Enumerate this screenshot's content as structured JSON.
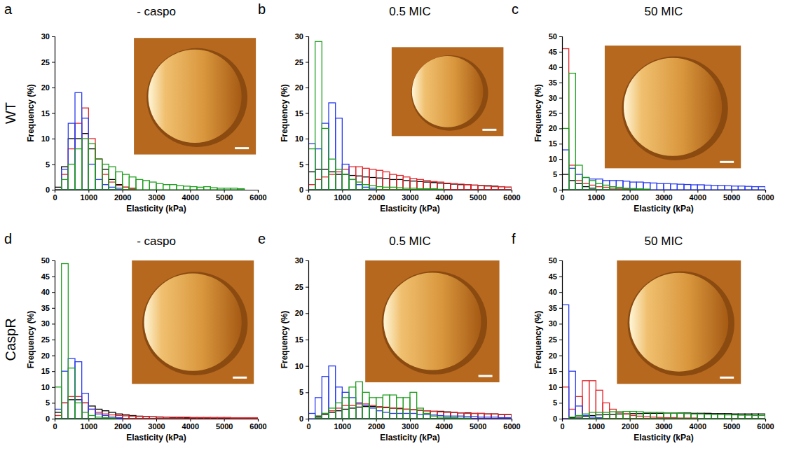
{
  "chart_data": [
    {
      "type": "histogram",
      "letter": "a",
      "title": "- caspo",
      "row_label": "WT",
      "x_label": "Elasticity (kPa)",
      "y_label": "Frequency (%)",
      "bins": [
        0,
        200,
        400,
        600,
        800,
        1000,
        1200,
        1400,
        1600,
        1800,
        2000,
        2200,
        2400,
        2600,
        2800,
        3000,
        3200,
        3400,
        3600,
        3800,
        4000,
        4200,
        4400,
        4600,
        4800,
        5000,
        5200,
        5400,
        5600,
        5800,
        6000
      ],
      "xlim": [
        0,
        6000
      ],
      "ylim": [
        0,
        30
      ],
      "xticks": [
        0,
        1000,
        2000,
        3000,
        4000,
        5000,
        6000
      ],
      "yticks": [
        0,
        5,
        10,
        15,
        20,
        25,
        30
      ],
      "series": [
        {
          "color": "#000000",
          "values": [
            0.5,
            4.5,
            10,
            10,
            11,
            8,
            6,
            4,
            2,
            1,
            0.5,
            0.3,
            0,
            0,
            0,
            0,
            0,
            0,
            0,
            0,
            0,
            0,
            0,
            0,
            0,
            0,
            0,
            0,
            0,
            0
          ]
        },
        {
          "color": "#e3262b",
          "values": [
            0,
            3,
            8,
            13,
            16,
            10,
            6,
            3,
            1.5,
            0.8,
            0.5,
            0.3,
            0,
            0,
            0,
            0,
            0,
            0,
            0,
            0,
            0,
            0,
            0,
            0,
            0,
            0,
            0,
            0,
            0,
            0
          ]
        },
        {
          "color": "#2a3cf0",
          "values": [
            0,
            4,
            13,
            19,
            14,
            5,
            2,
            1,
            0.5,
            0.3,
            0,
            0,
            0,
            0,
            0,
            0,
            0,
            0,
            0,
            0,
            0,
            0,
            0,
            0,
            0,
            0,
            0,
            0,
            0,
            0
          ]
        },
        {
          "color": "#1f9e1f",
          "values": [
            0,
            2,
            5,
            8,
            10,
            9,
            6,
            5,
            4.5,
            3.5,
            3,
            2.5,
            2,
            1.8,
            1.5,
            1.2,
            1,
            1,
            0.8,
            0.7,
            0.6,
            0.5,
            0.6,
            0.4,
            0.3,
            0.3,
            0.3,
            0.2,
            0,
            0
          ]
        }
      ]
    },
    {
      "type": "histogram",
      "letter": "b",
      "title": "0.5 MIC",
      "x_label": "Elasticity (kPa)",
      "y_label": "Frequency (%)",
      "bins": [
        0,
        200,
        400,
        600,
        800,
        1000,
        1200,
        1400,
        1600,
        1800,
        2000,
        2200,
        2400,
        2600,
        2800,
        3000,
        3200,
        3400,
        3600,
        3800,
        4000,
        4200,
        4400,
        4600,
        4800,
        5000,
        5200,
        5400,
        5600,
        5800,
        6000
      ],
      "xlim": [
        0,
        6000
      ],
      "ylim": [
        0,
        30
      ],
      "xticks": [
        0,
        1000,
        2000,
        3000,
        4000,
        5000,
        6000
      ],
      "yticks": [
        0,
        5,
        10,
        15,
        20,
        25,
        30
      ],
      "series": [
        {
          "color": "#000000",
          "values": [
            3.5,
            4,
            4,
            3.5,
            3,
            3,
            2.8,
            2.7,
            2.5,
            2.4,
            2.3,
            2.2,
            2,
            2,
            1.8,
            1.7,
            1.6,
            1.5,
            1.4,
            1.3,
            1.2,
            1.1,
            1,
            1,
            0.9,
            0.8,
            0.8,
            0.7,
            0.6,
            0.5
          ]
        },
        {
          "color": "#e3262b",
          "values": [
            1,
            2,
            2.5,
            3,
            3.5,
            4,
            4.5,
            4.5,
            4.2,
            4,
            3.8,
            3.5,
            3,
            2.8,
            2.5,
            2.2,
            2,
            1.8,
            1.6,
            1.5,
            1.3,
            1.2,
            1.1,
            1,
            0.9,
            0.8,
            0.7,
            0.6,
            0.6,
            0.5
          ]
        },
        {
          "color": "#2a3cf0",
          "values": [
            9,
            8,
            13,
            17,
            14,
            5,
            2,
            1,
            0.5,
            0.3,
            0,
            0,
            0,
            0,
            0,
            0,
            0,
            0,
            0,
            0,
            0,
            0,
            0,
            0,
            0,
            0,
            0,
            0,
            0,
            0
          ]
        },
        {
          "color": "#1f9e1f",
          "values": [
            8,
            29,
            12,
            6,
            4,
            3,
            2,
            1.5,
            1,
            0.8,
            0.6,
            0.5,
            0.5,
            0.4,
            0.3,
            0.3,
            0.2,
            0.2,
            0.2,
            0.1,
            0,
            0,
            0,
            0,
            0,
            0,
            0,
            0,
            0,
            0
          ]
        }
      ]
    },
    {
      "type": "histogram",
      "letter": "c",
      "title": "50 MIC",
      "x_label": "Elasticity (kPa)",
      "y_label": "Frequency (%)",
      "bins": [
        0,
        200,
        400,
        600,
        800,
        1000,
        1200,
        1400,
        1600,
        1800,
        2000,
        2200,
        2400,
        2600,
        2800,
        3000,
        3200,
        3400,
        3600,
        3800,
        4000,
        4200,
        4400,
        4600,
        4800,
        5000,
        5200,
        5400,
        5600,
        5800,
        6000
      ],
      "xlim": [
        0,
        6000
      ],
      "ylim": [
        0,
        50
      ],
      "xticks": [
        0,
        1000,
        2000,
        3000,
        4000,
        5000,
        6000
      ],
      "yticks": [
        0,
        5,
        10,
        15,
        20,
        25,
        30,
        35,
        40,
        45,
        50
      ],
      "series": [
        {
          "color": "#000000",
          "values": [
            5,
            3,
            2,
            1,
            0.5,
            0,
            0,
            0,
            0,
            0,
            0,
            0,
            0,
            0,
            0,
            0,
            0,
            0,
            0,
            0,
            0,
            0,
            0,
            0,
            0,
            0,
            0,
            0,
            0,
            0
          ]
        },
        {
          "color": "#e3262b",
          "values": [
            46,
            8,
            3,
            2,
            1.5,
            1,
            0.8,
            0.5,
            0.4,
            0.3,
            0.2,
            0,
            0,
            0,
            0,
            0,
            0,
            0,
            0,
            0,
            0,
            0,
            0,
            0,
            0,
            0,
            0,
            0,
            0,
            0
          ]
        },
        {
          "color": "#2a3cf0",
          "values": [
            13,
            7,
            5,
            4,
            3.5,
            3.5,
            3,
            3,
            3,
            2.8,
            2.5,
            2.5,
            2.3,
            2.2,
            2,
            2,
            1.9,
            1.8,
            1.7,
            1.6,
            1.6,
            1.5,
            1.4,
            1.4,
            1.3,
            1.2,
            1.2,
            1.1,
            1,
            1
          ]
        },
        {
          "color": "#1f9e1f",
          "values": [
            20,
            38,
            8,
            4,
            3,
            2,
            1.5,
            1,
            0.8,
            0.5,
            0.4,
            0.3,
            0.2,
            0,
            0,
            0,
            0,
            0,
            0,
            0,
            0,
            0,
            0,
            0,
            0,
            0,
            0,
            0,
            0,
            0
          ]
        }
      ]
    },
    {
      "type": "histogram",
      "letter": "d",
      "title": "- caspo",
      "row_label": "CaspR",
      "x_label": "Elasticity (kPa)",
      "y_label": "Frequency (%)",
      "bins": [
        0,
        200,
        400,
        600,
        800,
        1000,
        1200,
        1400,
        1600,
        1800,
        2000,
        2200,
        2400,
        2600,
        2800,
        3000,
        3200,
        3400,
        3600,
        3800,
        4000,
        4200,
        4400,
        4600,
        4800,
        5000,
        5200,
        5400,
        5600,
        5800,
        6000
      ],
      "xlim": [
        0,
        6000
      ],
      "ylim": [
        0,
        50
      ],
      "xticks": [
        0,
        1000,
        2000,
        3000,
        4000,
        5000,
        6000
      ],
      "yticks": [
        0,
        5,
        10,
        15,
        20,
        25,
        30,
        35,
        40,
        45,
        50
      ],
      "series": [
        {
          "color": "#000000",
          "values": [
            2,
            5,
            6,
            6,
            5,
            4,
            3,
            2.5,
            2,
            1.5,
            1.2,
            1,
            0.8,
            0.7,
            0.6,
            0.5,
            0.5,
            0.4,
            0.4,
            0.3,
            0.3,
            0.3,
            0.3,
            0.2,
            0.2,
            0.2,
            0.2,
            0.2,
            0.2,
            0.2
          ]
        },
        {
          "color": "#e3262b",
          "values": [
            1,
            5,
            7,
            7,
            5,
            3,
            2,
            1.5,
            1.2,
            1,
            0.9,
            0.8,
            0.7,
            0.7,
            0.6,
            0.6,
            0.5,
            0.5,
            0.5,
            0.5,
            0.4,
            0.4,
            0.4,
            0.4,
            0.4,
            0.4,
            0.3,
            0.3,
            0.3,
            0.3
          ]
        },
        {
          "color": "#2a3cf0",
          "values": [
            3,
            15,
            19,
            18,
            8,
            3,
            1.5,
            1,
            0.5,
            0.3,
            0,
            0,
            0,
            0,
            0,
            0,
            0,
            0,
            0,
            0,
            0,
            0,
            0,
            0,
            0,
            0,
            0,
            0,
            0,
            0
          ]
        },
        {
          "color": "#1f9e1f",
          "values": [
            10,
            49,
            16,
            5,
            2,
            1,
            0.5,
            0.3,
            0.2,
            0,
            0,
            0,
            0,
            0,
            0,
            0,
            0,
            0,
            0,
            0,
            0,
            0,
            0,
            0,
            0,
            0,
            0,
            0,
            0,
            0
          ]
        }
      ]
    },
    {
      "type": "histogram",
      "letter": "e",
      "title": "0.5 MIC",
      "x_label": "Elasticity (kPa)",
      "y_label": "Frequency (%)",
      "bins": [
        0,
        200,
        400,
        600,
        800,
        1000,
        1200,
        1400,
        1600,
        1800,
        2000,
        2200,
        2400,
        2600,
        2800,
        3000,
        3200,
        3400,
        3600,
        3800,
        4000,
        4200,
        4400,
        4600,
        4800,
        5000,
        5200,
        5400,
        5600,
        5800,
        6000
      ],
      "xlim": [
        0,
        6000
      ],
      "ylim": [
        0,
        30
      ],
      "xticks": [
        0,
        1000,
        2000,
        3000,
        4000,
        5000,
        6000
      ],
      "yticks": [
        0,
        5,
        10,
        15,
        20,
        25,
        30
      ],
      "series": [
        {
          "color": "#000000",
          "values": [
            0,
            0.3,
            0.8,
            1.2,
            1.5,
            1.8,
            2,
            2.2,
            2.3,
            2.3,
            2.2,
            2.1,
            2,
            1.9,
            1.8,
            1.7,
            1.6,
            1.5,
            1.4,
            1.4,
            1.3,
            1.2,
            1.1,
            1.1,
            1,
            1,
            0.9,
            0.9,
            0.8,
            0.8
          ]
        },
        {
          "color": "#e3262b",
          "values": [
            0,
            0.5,
            1,
            1.5,
            2,
            2.5,
            2.5,
            2.8,
            2.8,
            2.5,
            2.3,
            2.2,
            2,
            2,
            1.8,
            1.7,
            1.6,
            1.5,
            1.4,
            1.3,
            1.2,
            1.2,
            1.1,
            1,
            1,
            1,
            0.9,
            0.9,
            0.8,
            0.8
          ]
        },
        {
          "color": "#2a3cf0",
          "values": [
            1,
            4,
            8,
            10,
            6,
            5,
            4,
            3,
            2.5,
            2,
            1.5,
            1.2,
            1,
            1,
            1,
            1,
            0.8,
            0.8,
            0.7,
            0.6,
            0.5,
            0.5,
            0.5,
            0.4,
            0.4,
            0.3,
            0.3,
            0.3,
            0.2,
            0.2
          ]
        },
        {
          "color": "#1f9e1f",
          "values": [
            0,
            0.5,
            1,
            2,
            3,
            4,
            6,
            7,
            5,
            4,
            4,
            4.5,
            4.5,
            4,
            4,
            5,
            2,
            1,
            0.5,
            0.3,
            0.2,
            0.2,
            0.1,
            0.1,
            0,
            0,
            0,
            0,
            0,
            0
          ]
        }
      ]
    },
    {
      "type": "histogram",
      "letter": "f",
      "title": "50 MIC",
      "x_label": "Elasticity (kPa)",
      "y_label": "Frequency (%)",
      "bins": [
        0,
        200,
        400,
        600,
        800,
        1000,
        1200,
        1400,
        1600,
        1800,
        2000,
        2200,
        2400,
        2600,
        2800,
        3000,
        3200,
        3400,
        3600,
        3800,
        4000,
        4200,
        4400,
        4600,
        4800,
        5000,
        5200,
        5400,
        5600,
        5800,
        6000
      ],
      "xlim": [
        0,
        6000
      ],
      "ylim": [
        0,
        50
      ],
      "xticks": [
        0,
        1000,
        2000,
        3000,
        4000,
        5000,
        6000
      ],
      "yticks": [
        0,
        5,
        10,
        15,
        20,
        25,
        30,
        35,
        40,
        45,
        50
      ],
      "series": [
        {
          "color": "#000000",
          "values": [
            0,
            0.3,
            0.5,
            0.8,
            1,
            1.2,
            1.3,
            1.4,
            1.5,
            1.5,
            1.6,
            1.6,
            1.7,
            1.7,
            1.7,
            1.8,
            1.8,
            1.8,
            1.8,
            1.7,
            1.7,
            1.7,
            1.6,
            1.6,
            1.6,
            1.5,
            1.5,
            1.5,
            1.5,
            1.5
          ]
        },
        {
          "color": "#e3262b",
          "values": [
            10,
            3,
            7,
            12,
            12,
            9,
            5,
            3,
            2,
            1.5,
            1,
            0.8,
            0.6,
            0.5,
            0.4,
            0.3,
            0.3,
            0.2,
            0.2,
            0.2,
            0,
            0,
            0,
            0,
            0,
            0,
            0,
            0,
            0,
            0
          ]
        },
        {
          "color": "#2a3cf0",
          "values": [
            36,
            15,
            4,
            1,
            0.5,
            0.3,
            0,
            0,
            0,
            0,
            0,
            0,
            0,
            0,
            0,
            0,
            0,
            0,
            0,
            0,
            0,
            0,
            0,
            0,
            0,
            0,
            0,
            0,
            0,
            0
          ]
        },
        {
          "color": "#1f9e1f",
          "values": [
            0,
            0.5,
            1,
            1.5,
            2,
            2,
            2,
            2.2,
            2.2,
            2.3,
            2.3,
            2.2,
            2,
            2,
            2,
            1.8,
            1.8,
            1.7,
            1.6,
            1.5,
            1.5,
            1.4,
            1.3,
            1.3,
            1.2,
            1.2,
            1.1,
            1.1,
            1,
            1
          ]
        }
      ]
    }
  ]
}
